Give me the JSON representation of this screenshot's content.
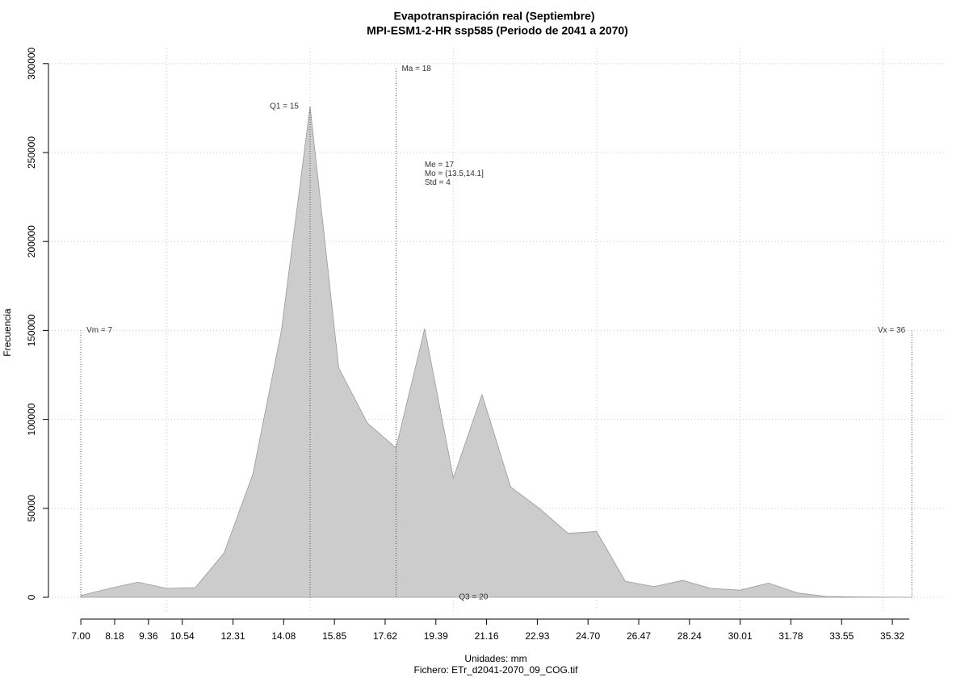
{
  "chart_data": {
    "type": "area",
    "title": "Evapotranspiración real (Septiembre)",
    "subtitle": "MPI-ESM1-2-HR ssp585 (Periodo de 2041 a 2070)",
    "x_label": "Unidades: mm",
    "caption": "Fichero: ETr_d2041-2070_09_COG.tif",
    "y_label": "Frecuencia",
    "color": "#cccccc",
    "x": [
      7,
      8,
      9,
      10,
      11,
      12,
      13,
      14,
      15,
      16,
      17,
      18,
      19,
      20,
      21,
      22,
      23,
      24,
      25,
      26,
      27,
      28,
      29,
      30,
      31,
      32,
      33,
      34,
      35,
      36
    ],
    "values": [
      1000,
      5000,
      8500,
      5000,
      5500,
      25000,
      69000,
      150000,
      276000,
      129000,
      98000,
      84000,
      151000,
      67000,
      114000,
      62000,
      50000,
      36000,
      37000,
      9000,
      6000,
      9500,
      5000,
      4000,
      8000,
      2500,
      500,
      200,
      100,
      0
    ],
    "xlim": [
      5.87,
      37.15
    ],
    "ylim": [
      -9074,
      308530
    ],
    "xticks": [
      {
        "value": 7,
        "label": "7.00"
      },
      8.18,
      9.36,
      10.54,
      12.31,
      14.08,
      15.85,
      17.62,
      19.39,
      21.16,
      22.93,
      {
        "value": 24.7,
        "label": "24.70"
      },
      26.47,
      28.24,
      30.01,
      31.78,
      33.55,
      35.32
    ],
    "xgrid": [
      10,
      15,
      20,
      25,
      30,
      35
    ],
    "yticks": [
      0,
      50000,
      100000,
      150000,
      200000,
      250000,
      300000
    ],
    "grid": true,
    "annotations": [
      {
        "text": "Vm = 7",
        "x": 7,
        "y": 150000,
        "line": true
      },
      {
        "text": "Vx = 36",
        "x": 36,
        "y": 150000,
        "line": true
      },
      {
        "text": "Q1 = 15",
        "x": 15,
        "y": 276000,
        "line": true
      },
      {
        "text": "Ma = 18",
        "x": 18,
        "y": 297000,
        "line": true
      },
      {
        "text": "Q3 = 20",
        "x": 20,
        "y": 0,
        "line": false
      },
      {
        "text": "Me = 17",
        "x": 18.8,
        "y": 243000,
        "line": false
      },
      {
        "text": "Mo = (13.5,14.1]",
        "x": 18.8,
        "y": 238000,
        "line": false
      },
      {
        "text": "Std = 4",
        "x": 18.8,
        "y": 233000,
        "line": false
      }
    ]
  }
}
